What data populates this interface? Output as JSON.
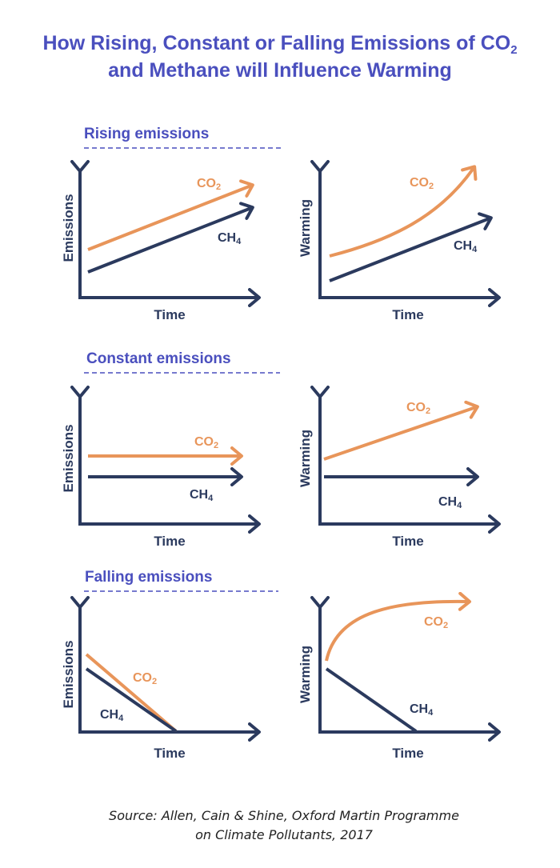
{
  "title": {
    "line1": "How Rising, Constant or Falling Emissions of CO",
    "line1_sub": "2",
    "line2": "and Methane will Influence Warming"
  },
  "labels": {
    "x_axis": "Time",
    "emissions": "Emissions",
    "warming": "Warming",
    "co2": "CO",
    "co2_sub": "2",
    "ch4": "CH",
    "ch4_sub": "4"
  },
  "sections": [
    {
      "heading": "Rising emissions"
    },
    {
      "heading": "Constant emissions"
    },
    {
      "heading": "Falling emissions"
    }
  ],
  "source": {
    "line1": "Source: Allen, Cain & Shine, Oxford Martin Programme",
    "line2": "on Climate Pollutants, 2017"
  },
  "colors": {
    "heading": "#4a4fbe",
    "ch4": "#2b3a5e",
    "co2": "#e8955a"
  }
}
